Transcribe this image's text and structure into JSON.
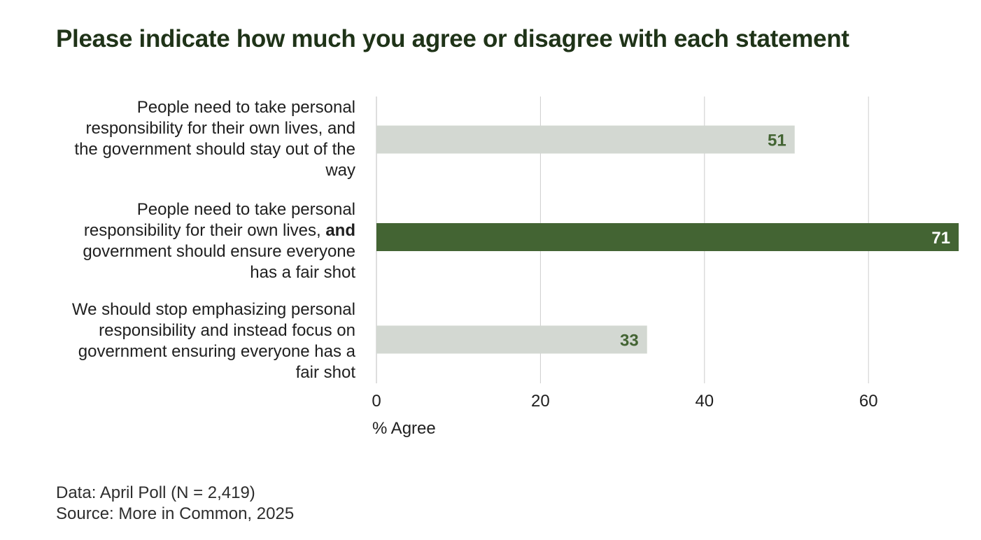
{
  "chart_data": {
    "type": "bar",
    "orientation": "horizontal",
    "title": "Please indicate how much you agree or disagree with each statement",
    "categories": [
      {
        "segments": [
          {
            "text": "People need to take personal responsibility for their own lives, and the government should stay out of the way",
            "bold": false
          }
        ]
      },
      {
        "segments": [
          {
            "text": "People need to take personal responsibility for their own lives, ",
            "bold": false
          },
          {
            "text": "and",
            "bold": true
          },
          {
            "text": " government should ensure everyone has a fair shot",
            "bold": false
          }
        ]
      },
      {
        "segments": [
          {
            "text": "We should stop emphasizing personal responsibility and instead focus on government ensuring everyone has a fair shot",
            "bold": false
          }
        ]
      }
    ],
    "values": [
      51,
      71,
      33
    ],
    "highlight_index": 1,
    "xlabel": "% Agree",
    "xticks": [
      0,
      20,
      40,
      60
    ],
    "xlim": [
      0,
      71
    ],
    "grid": true
  },
  "colors": {
    "bar_default": "#d3d8d2",
    "bar_highlight": "#436433",
    "label_default": "#436433",
    "label_highlight": "#ffffff",
    "grid": "#cccccc",
    "title": "#1f3318"
  },
  "footer": {
    "data_line": "Data: April Poll (N = 2,419)",
    "source_line": "Source: More in Common, 2025"
  }
}
